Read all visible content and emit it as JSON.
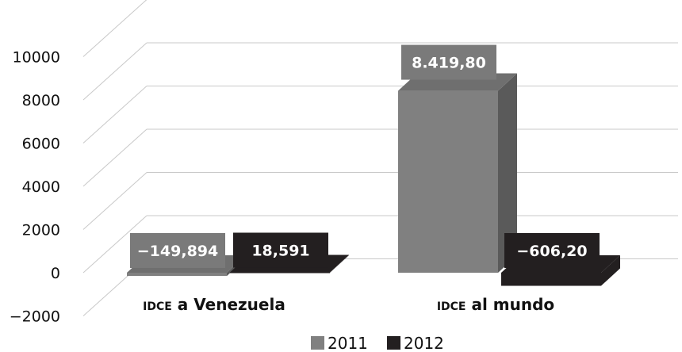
{
  "chart_data": {
    "type": "bar",
    "categories": [
      {
        "prefix": "IDCE",
        "rest": " a Venezuela"
      },
      {
        "prefix": "IDCE",
        "rest": " al mundo"
      }
    ],
    "series": [
      {
        "name": "2011",
        "values": [
          -149.894,
          8419.8
        ],
        "labels": [
          "−149,894",
          "8.419,80"
        ],
        "color": "#808080",
        "side_color": "#5a5a5a",
        "top_color": "#6f6f6f"
      },
      {
        "name": "2012",
        "values": [
          18.591,
          -606.2
        ],
        "labels": [
          "18,591",
          "−606,20"
        ],
        "color": "#231f20",
        "side_color": "#231f20",
        "top_color": "#231f20"
      }
    ],
    "yticks": [
      -2000,
      0,
      2000,
      4000,
      6000,
      8000,
      10000
    ],
    "ytick_labels": [
      "−2000",
      "0",
      "2000",
      "4000",
      "6000",
      "8000",
      "10000"
    ],
    "ylim": [
      -2000,
      10000
    ],
    "grid": true,
    "legend_position": "bottom",
    "three_d": true
  }
}
